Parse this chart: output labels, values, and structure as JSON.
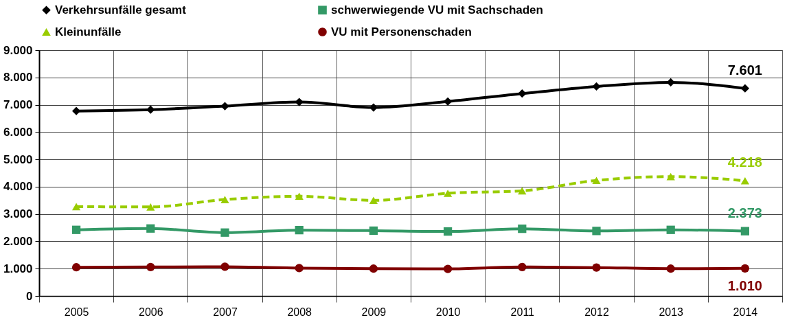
{
  "chart_data": {
    "type": "line",
    "categories": [
      "2005",
      "2006",
      "2007",
      "2008",
      "2009",
      "2010",
      "2011",
      "2012",
      "2013",
      "2014"
    ],
    "series": [
      {
        "name": "Verkehrsunfälle gesamt",
        "color": "#000000",
        "marker": "diamond",
        "line_style": "solid",
        "values": [
          6770,
          6820,
          6950,
          7100,
          6900,
          7120,
          7410,
          7670,
          7820,
          7601
        ],
        "value_labels": [
          null,
          null,
          null,
          null,
          null,
          null,
          null,
          null,
          null,
          "7.601"
        ]
      },
      {
        "name": "schwerwiegende VU mit Sachschaden",
        "color": "#339966",
        "marker": "square",
        "line_style": "solid",
        "values": [
          2420,
          2470,
          2320,
          2410,
          2390,
          2360,
          2460,
          2380,
          2420,
          2373
        ],
        "value_labels": [
          null,
          null,
          null,
          null,
          null,
          null,
          null,
          null,
          null,
          "2.373"
        ]
      },
      {
        "name": "Kleinunfälle",
        "color": "#99cc00",
        "marker": "triangle",
        "line_style": "dashed",
        "values": [
          3270,
          3260,
          3530,
          3650,
          3500,
          3760,
          3850,
          4230,
          4370,
          4218
        ],
        "value_labels": [
          null,
          null,
          null,
          null,
          null,
          null,
          null,
          null,
          null,
          "4.218"
        ]
      },
      {
        "name": "VU mit Personenschaden",
        "color": "#800000",
        "marker": "circle",
        "line_style": "solid",
        "values": [
          1050,
          1060,
          1070,
          1020,
          1000,
          990,
          1060,
          1040,
          1000,
          1010
        ],
        "value_labels": [
          null,
          null,
          null,
          null,
          null,
          null,
          null,
          null,
          null,
          "1.010"
        ]
      }
    ],
    "ylim": [
      0,
      9000
    ],
    "yticks": [
      0,
      {
        "value": 1000,
        "label": "1.000"
      },
      {
        "value": 2000,
        "label": "2.000"
      },
      {
        "value": 3000,
        "label": "3.000"
      },
      {
        "value": 4000,
        "label": "4.000"
      },
      {
        "value": 5000,
        "label": "5.000"
      },
      {
        "value": 6000,
        "label": "6.000"
      },
      {
        "value": 7000,
        "label": "7.000"
      },
      {
        "value": 8000,
        "label": "8.000"
      },
      {
        "value": 9000,
        "label": "9.000"
      }
    ],
    "grid": true,
    "legend": "top"
  }
}
